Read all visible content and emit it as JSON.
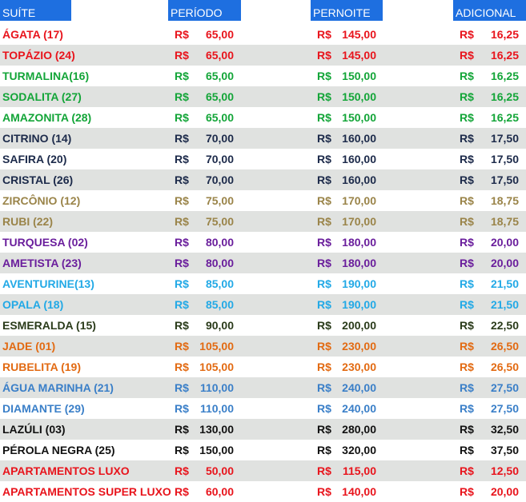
{
  "headers": {
    "suite": "SUÍTE",
    "periodo": "PERÍODO",
    "pernoite": "PERNOITE",
    "adicional": "ADICIONAL"
  },
  "currency": "R$",
  "rows": [
    {
      "name": "ÁGATA (17)",
      "periodo": "65,00",
      "pernoite": "145,00",
      "adicional": "16,25",
      "color": "#e8141c"
    },
    {
      "name": "TOPÁZIO (24)",
      "periodo": "65,00",
      "pernoite": "145,00",
      "adicional": "16,25",
      "color": "#e8141c"
    },
    {
      "name": "TURMALINA(16)",
      "periodo": "65,00",
      "pernoite": "150,00",
      "adicional": "16,25",
      "color": "#13a538"
    },
    {
      "name": "SODALITA (27)",
      "periodo": "65,00",
      "pernoite": "150,00",
      "adicional": "16,25",
      "color": "#13a538"
    },
    {
      "name": "AMAZONITA (28)",
      "periodo": "65,00",
      "pernoite": "150,00",
      "adicional": "16,25",
      "color": "#13a538"
    },
    {
      "name": "CITRINO (14)",
      "periodo": "70,00",
      "pernoite": "160,00",
      "adicional": "17,50",
      "color": "#1c2a4a"
    },
    {
      "name": "SAFIRA (20)",
      "periodo": "70,00",
      "pernoite": "160,00",
      "adicional": "17,50",
      "color": "#1c2a4a"
    },
    {
      "name": "CRISTAL (26)",
      "periodo": "70,00",
      "pernoite": "160,00",
      "adicional": "17,50",
      "color": "#1c2a4a"
    },
    {
      "name": "ZIRCÔNIO (12)",
      "periodo": "75,00",
      "pernoite": "170,00",
      "adicional": "18,75",
      "color": "#9a8449"
    },
    {
      "name": "RUBI (22)",
      "periodo": "75,00",
      "pernoite": "170,00",
      "adicional": "18,75",
      "color": "#9a8449"
    },
    {
      "name": "TURQUESA (02)",
      "periodo": "80,00",
      "pernoite": "180,00",
      "adicional": "20,00",
      "color": "#6a1e9c"
    },
    {
      "name": "AMETISTA (23)",
      "periodo": "80,00",
      "pernoite": "180,00",
      "adicional": "20,00",
      "color": "#6a1e9c"
    },
    {
      "name": "AVENTURINE(13)",
      "periodo": "85,00",
      "pernoite": "190,00",
      "adicional": "21,50",
      "color": "#22a9e6"
    },
    {
      "name": "OPALA (18)",
      "periodo": "85,00",
      "pernoite": "190,00",
      "adicional": "21,50",
      "color": "#22a9e6"
    },
    {
      "name": "ESMERALDA (15)",
      "periodo": "90,00",
      "pernoite": "200,00",
      "adicional": "22,50",
      "color": "#2a3b1a"
    },
    {
      "name": "JADE (01)",
      "periodo": "105,00",
      "pernoite": "230,00",
      "adicional": "26,50",
      "color": "#e26a12"
    },
    {
      "name": "RUBELITA (19)",
      "periodo": "105,00",
      "pernoite": "230,00",
      "adicional": "26,50",
      "color": "#e26a12"
    },
    {
      "name": "ÁGUA MARINHA (21)",
      "periodo": "110,00",
      "pernoite": "240,00",
      "adicional": "27,50",
      "color": "#3a7fc8"
    },
    {
      "name": "DIAMANTE (29)",
      "periodo": "110,00",
      "pernoite": "240,00",
      "adicional": "27,50",
      "color": "#3a7fc8"
    },
    {
      "name": "LAZÚLI (03)",
      "periodo": "130,00",
      "pernoite": "280,00",
      "adicional": "32,50",
      "color": "#111111"
    },
    {
      "name": "PÉROLA NEGRA (25)",
      "periodo": "150,00",
      "pernoite": "320,00",
      "adicional": "37,50",
      "color": "#111111"
    },
    {
      "name": "APARTAMENTOS LUXO",
      "periodo": "50,00",
      "pernoite": "115,00",
      "adicional": "12,50",
      "color": "#e8141c"
    },
    {
      "name": "APARTAMENTOS SUPER LUXO",
      "periodo": "60,00",
      "pernoite": "140,00",
      "adicional": "20,00",
      "color": "#e8141c"
    }
  ]
}
